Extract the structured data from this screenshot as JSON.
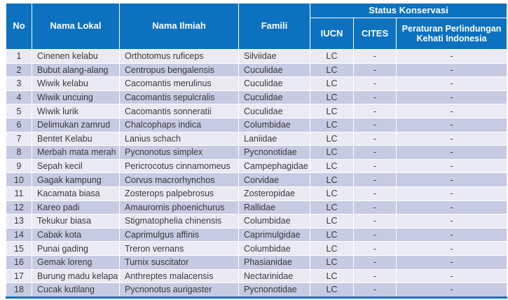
{
  "table": {
    "headers": {
      "no": "No",
      "nama_lokal": "Nama Lokal",
      "nama_ilmiah": "Nama Ilmiah",
      "famili": "Famili",
      "status_konservasi": "Status Konservasi",
      "iucn": "IUCN",
      "cites": "CITES",
      "peraturan": "Peraturan Perlindungan Kehati Indonesia"
    },
    "rows": [
      [
        "1",
        "Cinenen kelabu",
        "Orthotomus ruficeps",
        "Silviidae",
        "LC",
        "-",
        "-"
      ],
      [
        "2",
        "Bubut alang-alang",
        "Centropus bengalensis",
        "Cuculidae",
        "LC",
        "-",
        "-"
      ],
      [
        "3",
        "Wiwik kelabu",
        "Cacomantis merulinus",
        "Cuculidae",
        "LC",
        "-",
        "-"
      ],
      [
        "4",
        "Wiwik uncuing",
        "Cacomantis sepulcralis",
        "Cuculidae",
        "LC",
        "-",
        "-"
      ],
      [
        "5",
        "Wiwik lurik",
        "Cacomantis sonneratii",
        "Cuculidae",
        "LC",
        "-",
        "-"
      ],
      [
        "6",
        "Delimukan zamrud",
        "Chalcophaps indica",
        "Columbidae",
        "LC",
        "-",
        "-"
      ],
      [
        "7",
        "Bentet Kelabu",
        "Lanius schach",
        "Laniidae",
        "LC",
        "-",
        "-"
      ],
      [
        "8",
        "Merbah mata merah",
        "Pycnonotus simplex",
        "Pycnonotidae",
        "LC",
        "-",
        "-"
      ],
      [
        "9",
        "Sepah kecil",
        "Pericrocotus cinnamomeus",
        "Campephagidae",
        "LC",
        "-",
        "-"
      ],
      [
        "10",
        "Gagak kampung",
        "Corvus macrorhynchos",
        "Corvidae",
        "LC",
        "-",
        "-"
      ],
      [
        "11",
        "Kacamata biasa",
        "Zosterops palpebrosus",
        "Zosteropidae",
        "LC",
        "-",
        "-"
      ],
      [
        "12",
        "Kareo padi",
        "Amaurornis phoenichurus",
        "Rallidae",
        "LC",
        "-",
        "-"
      ],
      [
        "13",
        "Tekukur biasa",
        "Stigmatophelia chinensis",
        "Columbidae",
        "LC",
        "-",
        "-"
      ],
      [
        "14",
        "Cabak kota",
        "Caprimulgus affinis",
        "Caprimulgidae",
        "LC",
        "-",
        "-"
      ],
      [
        "15",
        "Punai gading",
        "Treron vernans",
        "Columbidae",
        "LC",
        "-",
        "-"
      ],
      [
        "16",
        "Gemak loreng",
        "Turnix suscitator",
        "Phasianidae",
        "LC",
        "-",
        "-"
      ],
      [
        "17",
        "Burung madu kelapa",
        "Anthreptes malacensis",
        "Nectarinidae",
        "LC",
        "-",
        "-"
      ],
      [
        "18",
        "Cucak kutilang",
        "Pycnonotus aurigaster",
        "Pycnonotidae",
        "LC",
        "-",
        "-"
      ]
    ]
  },
  "colors": {
    "header_bg": "#0c72c0",
    "row_odd": "#e9eaf4",
    "row_even": "#c6cae2",
    "body_text": "#3a3a3a",
    "header_text": "#ffffff",
    "bottom_border": "#0c72c0"
  }
}
